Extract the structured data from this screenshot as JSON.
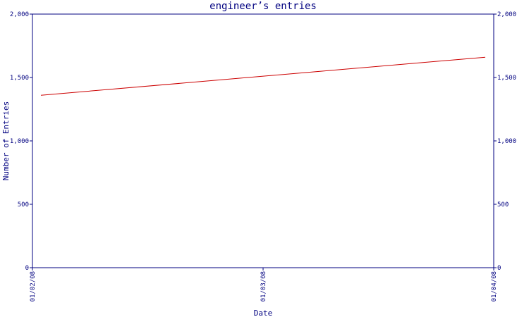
{
  "chart_data": {
    "type": "line",
    "title": "engineer’s entries",
    "xlabel": "Date",
    "ylabel": "Number of Entries",
    "categories": [
      "01/02/08",
      "01/03/08",
      "01/04/08"
    ],
    "x": [
      "01/02/08",
      "01/04/08"
    ],
    "series": [
      {
        "values": [
          1360,
          1660
        ],
        "color": "#cc0000"
      }
    ],
    "ylim": [
      0,
      2000
    ],
    "yticks": [
      {
        "value": 0,
        "label": "0"
      },
      {
        "value": 500,
        "label": "500"
      },
      {
        "value": 1000,
        "label": "1,000"
      },
      {
        "value": 1500,
        "label": "1,500"
      },
      {
        "value": 2000,
        "label": "2,000"
      }
    ],
    "grid": false,
    "secondary_y_axis": true,
    "colors": {
      "axis": "#000080",
      "text": "#000080",
      "series": "#cc0000",
      "background": "#ffffff"
    }
  }
}
